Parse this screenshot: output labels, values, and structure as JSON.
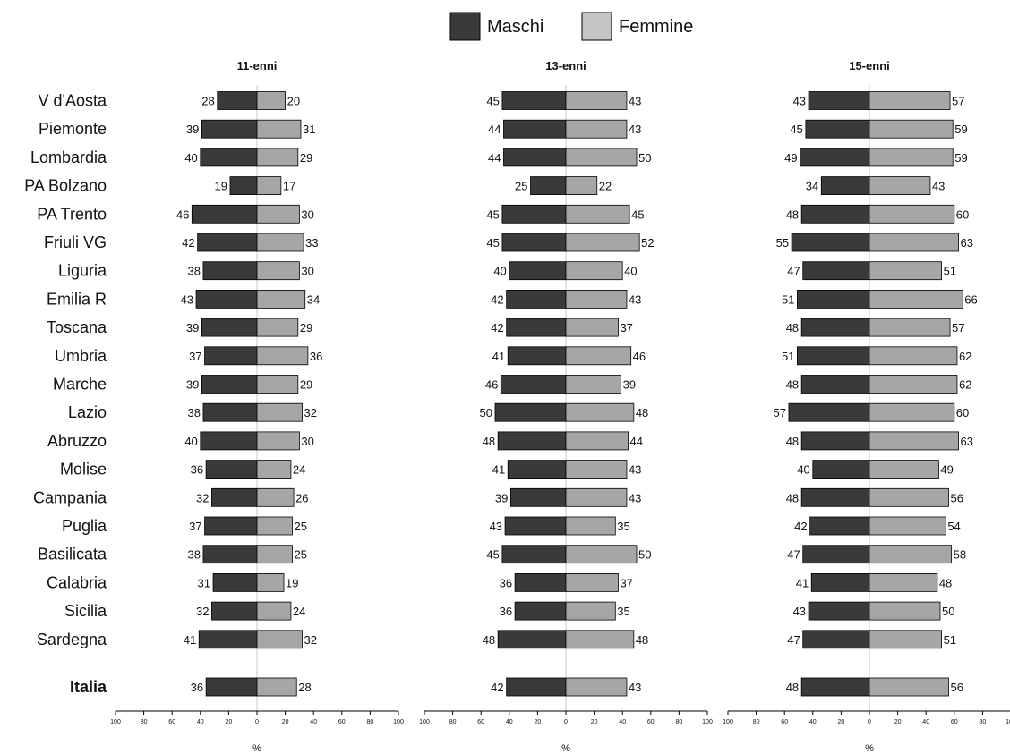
{
  "legend": {
    "male_label": "Maschi",
    "female_label": "Femmine"
  },
  "colors": {
    "male": "#3a3a3a",
    "female": "#a6a6a6",
    "center_line": "#c8c8c8"
  },
  "chart_data": [
    {
      "type": "bar",
      "title": "11-enni",
      "xlabel": "%",
      "xlim": [
        -100,
        100
      ],
      "xticks": [
        "100",
        "80",
        "60",
        "40",
        "20",
        "0",
        "20",
        "40",
        "60",
        "80",
        "100"
      ],
      "categories": [
        "V d'Aosta",
        "Piemonte",
        "Lombardia",
        "PA Bolzano",
        "PA Trento",
        "Friuli VG",
        "Liguria",
        "Emilia R",
        "Toscana",
        "Umbria",
        "Marche",
        "Lazio",
        "Abruzzo",
        "Molise",
        "Campania",
        "Puglia",
        "Basilicata",
        "Calabria",
        "Sicilia",
        "Sardegna",
        "Italia"
      ],
      "series": [
        {
          "name": "Maschi",
          "values": [
            28,
            39,
            40,
            19,
            46,
            42,
            38,
            43,
            39,
            37,
            39,
            38,
            40,
            36,
            32,
            37,
            38,
            31,
            32,
            41,
            36
          ]
        },
        {
          "name": "Femmine",
          "values": [
            20,
            31,
            29,
            17,
            30,
            33,
            30,
            34,
            29,
            36,
            29,
            32,
            30,
            24,
            26,
            25,
            25,
            19,
            24,
            32,
            28
          ]
        }
      ]
    },
    {
      "type": "bar",
      "title": "13-enni",
      "xlabel": "%",
      "xlim": [
        -100,
        100
      ],
      "xticks": [
        "100",
        "80",
        "60",
        "40",
        "20",
        "0",
        "20",
        "40",
        "60",
        "80",
        "100"
      ],
      "categories": [
        "V d'Aosta",
        "Piemonte",
        "Lombardia",
        "PA Bolzano",
        "PA Trento",
        "Friuli VG",
        "Liguria",
        "Emilia R",
        "Toscana",
        "Umbria",
        "Marche",
        "Lazio",
        "Abruzzo",
        "Molise",
        "Campania",
        "Puglia",
        "Basilicata",
        "Calabria",
        "Sicilia",
        "Sardegna",
        "Italia"
      ],
      "series": [
        {
          "name": "Maschi",
          "values": [
            45,
            44,
            44,
            25,
            45,
            45,
            40,
            42,
            42,
            41,
            46,
            50,
            48,
            41,
            39,
            43,
            45,
            36,
            36,
            48,
            42
          ]
        },
        {
          "name": "Femmine",
          "values": [
            43,
            43,
            50,
            22,
            45,
            52,
            40,
            43,
            37,
            46,
            39,
            48,
            44,
            43,
            43,
            35,
            50,
            37,
            35,
            48,
            43
          ]
        }
      ]
    },
    {
      "type": "bar",
      "title": "15-enni",
      "xlabel": "%",
      "xlim": [
        -100,
        100
      ],
      "xticks": [
        "100",
        "80",
        "60",
        "40",
        "20",
        "0",
        "20",
        "40",
        "60",
        "80",
        "100"
      ],
      "categories": [
        "V d'Aosta",
        "Piemonte",
        "Lombardia",
        "PA Bolzano",
        "PA Trento",
        "Friuli VG",
        "Liguria",
        "Emilia R",
        "Toscana",
        "Umbria",
        "Marche",
        "Lazio",
        "Abruzzo",
        "Molise",
        "Campania",
        "Puglia",
        "Basilicata",
        "Calabria",
        "Sicilia",
        "Sardegna",
        "Italia"
      ],
      "series": [
        {
          "name": "Maschi",
          "values": [
            43,
            45,
            49,
            34,
            48,
            55,
            47,
            51,
            48,
            51,
            48,
            57,
            48,
            40,
            48,
            42,
            47,
            41,
            43,
            47,
            48
          ]
        },
        {
          "name": "Femmine",
          "values": [
            57,
            59,
            59,
            43,
            60,
            63,
            51,
            66,
            57,
            62,
            62,
            60,
            63,
            49,
            56,
            54,
            58,
            48,
            50,
            51,
            56
          ]
        }
      ]
    }
  ]
}
